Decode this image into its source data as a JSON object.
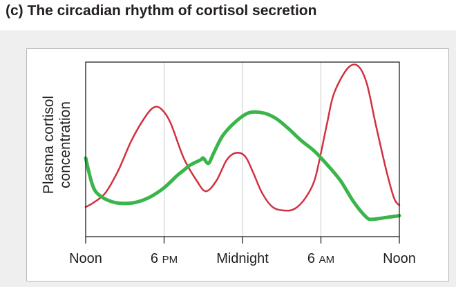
{
  "figure": {
    "title": "(c) The circadian rhythm of cortisol secretion"
  },
  "chart_data": {
    "type": "line",
    "title": "(c) The circadian rhythm of cortisol secretion",
    "xlabel": "",
    "ylabel_lines": [
      "Plasma cortisol",
      "concentration"
    ],
    "x_ticks": [
      {
        "value": 0,
        "main": "Noon",
        "sub": ""
      },
      {
        "value": 6,
        "main": "6 ",
        "sub": "PM"
      },
      {
        "value": 12,
        "main": "Midnight",
        "sub": ""
      },
      {
        "value": 18,
        "main": "6 ",
        "sub": "AM"
      },
      {
        "value": 24,
        "main": "Noon",
        "sub": ""
      }
    ],
    "x_unit": "hours after noon",
    "xlim": [
      0,
      24
    ],
    "ylim": [
      0,
      100
    ],
    "y_tick_labels": false,
    "grid": {
      "vertical_at_ticks": true,
      "horizontal": false
    },
    "series": [
      {
        "color": "#d2313f",
        "line_width": 2.5,
        "x": [
          0,
          0.5,
          1.5,
          2.5,
          3.5,
          4.5,
          5.2,
          5.8,
          6.5,
          7.5,
          8.5,
          9.2,
          10,
          10.8,
          11.5,
          12.2,
          12.8,
          13.5,
          14.3,
          15.2,
          16,
          16.8,
          17.5,
          18,
          18.5,
          19,
          20,
          20.8,
          21.5,
          22.2,
          23,
          23.6,
          24
        ],
        "y": [
          17,
          19,
          25,
          38,
          55,
          68,
          74,
          73,
          65,
          45,
          32,
          26,
          32,
          44,
          48,
          46,
          37,
          25,
          17,
          15,
          16,
          22,
          32,
          48,
          66,
          82,
          96,
          98,
          88,
          64,
          38,
          22,
          18
        ]
      },
      {
        "color": "#39b54a",
        "line_width": 5,
        "x": [
          0,
          0.5,
          1,
          2,
          3,
          4,
          5,
          6,
          7,
          7.5,
          8,
          8.8,
          9,
          9.4,
          9.8,
          10.5,
          11.5,
          12.5,
          13.5,
          14.5,
          15.5,
          16.5,
          17.5,
          18.5,
          19.5,
          20.5,
          21.5,
          22,
          23,
          24
        ],
        "y": [
          45,
          30,
          24,
          20,
          19,
          20,
          23,
          28,
          35,
          38,
          41,
          44,
          45,
          42,
          48,
          58,
          66,
          71,
          71,
          68,
          62,
          55,
          49,
          41,
          32,
          20,
          11,
          10,
          11,
          12
        ]
      }
    ]
  }
}
